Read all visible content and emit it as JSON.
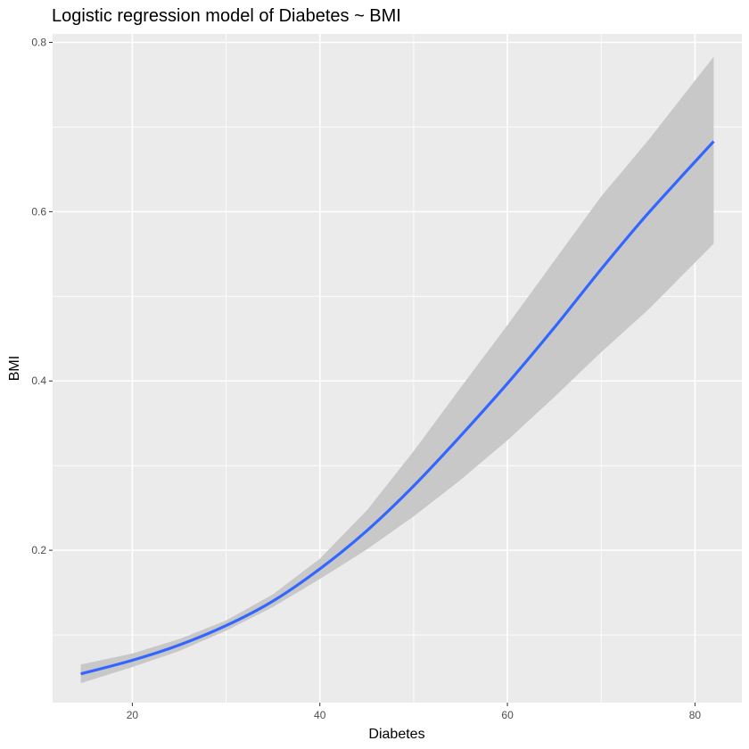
{
  "chart_data": {
    "type": "line",
    "title": "Logistic regression model of Diabetes ~ BMI",
    "xlabel": "Diabetes",
    "ylabel": "BMI",
    "xlim": [
      11.5,
      85
    ],
    "ylim": [
      0.02,
      0.81
    ],
    "x_ticks": [
      20,
      40,
      60,
      80
    ],
    "x_tick_labels": [
      "20",
      "40",
      "60",
      "80"
    ],
    "y_ticks": [
      0.2,
      0.4,
      0.6,
      0.8
    ],
    "y_tick_labels": [
      "0.2",
      "0.4",
      "0.6",
      "0.8"
    ],
    "x_minor_ticks": [
      30,
      50,
      70
    ],
    "y_minor_ticks": [
      0.1,
      0.3,
      0.5,
      0.7
    ],
    "grid": true,
    "legend": "none",
    "colors": {
      "panel": "#ebebeb",
      "grid": "#ffffff",
      "line": "#3366ff",
      "ribbon": "#c8c8c8"
    },
    "series": [
      {
        "x": [
          14.5,
          20,
          25,
          30,
          35,
          40,
          45,
          50,
          55,
          60,
          65,
          70,
          75,
          82
        ],
        "y": [
          0.054,
          0.07,
          0.088,
          0.111,
          0.14,
          0.178,
          0.223,
          0.276,
          0.335,
          0.397,
          0.463,
          0.532,
          0.598,
          0.683
        ],
        "lower": [
          0.043,
          0.062,
          0.081,
          0.105,
          0.133,
          0.166,
          0.201,
          0.24,
          0.283,
          0.33,
          0.381,
          0.434,
          0.484,
          0.562
        ],
        "upper": [
          0.065,
          0.078,
          0.095,
          0.117,
          0.148,
          0.19,
          0.247,
          0.317,
          0.392,
          0.466,
          0.542,
          0.618,
          0.684,
          0.783
        ]
      }
    ]
  }
}
